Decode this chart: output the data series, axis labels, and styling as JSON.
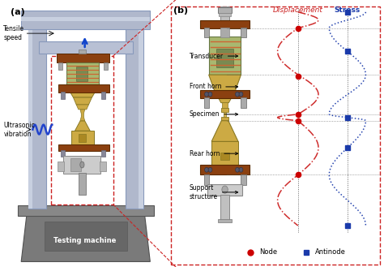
{
  "fig_width": 4.74,
  "fig_height": 3.29,
  "dpi": 100,
  "panel_a_label": "(a)",
  "panel_b_label": "(b)",
  "tensile_speed": "Tensile\nspeed",
  "ultrasonic_vibration": "Ultrasonic\nvibration",
  "testing_machine": "Testing machine",
  "label_b_text": [
    "Transducer",
    "Front horn",
    "Specimen",
    "Rear horn",
    "Support\nstructure"
  ],
  "displacement_label": "Displacement",
  "stress_label": "Stress",
  "node_label": "Node",
  "antinode_label": "Antinode",
  "node_color": "#cc0000",
  "antinode_color": "#1a3aaa",
  "displacement_color": "#cc2222",
  "stress_color": "#1a3aaa",
  "brown_color": "#8B4010",
  "yellow_color": "#ccaa44",
  "green_color": "#a8b870",
  "gray_col": "#aab0c0",
  "gray_dark": "#888898",
  "gray_light": "#cccccc",
  "machine_base": "#909090",
  "machine_frame": "#b0b8cc"
}
